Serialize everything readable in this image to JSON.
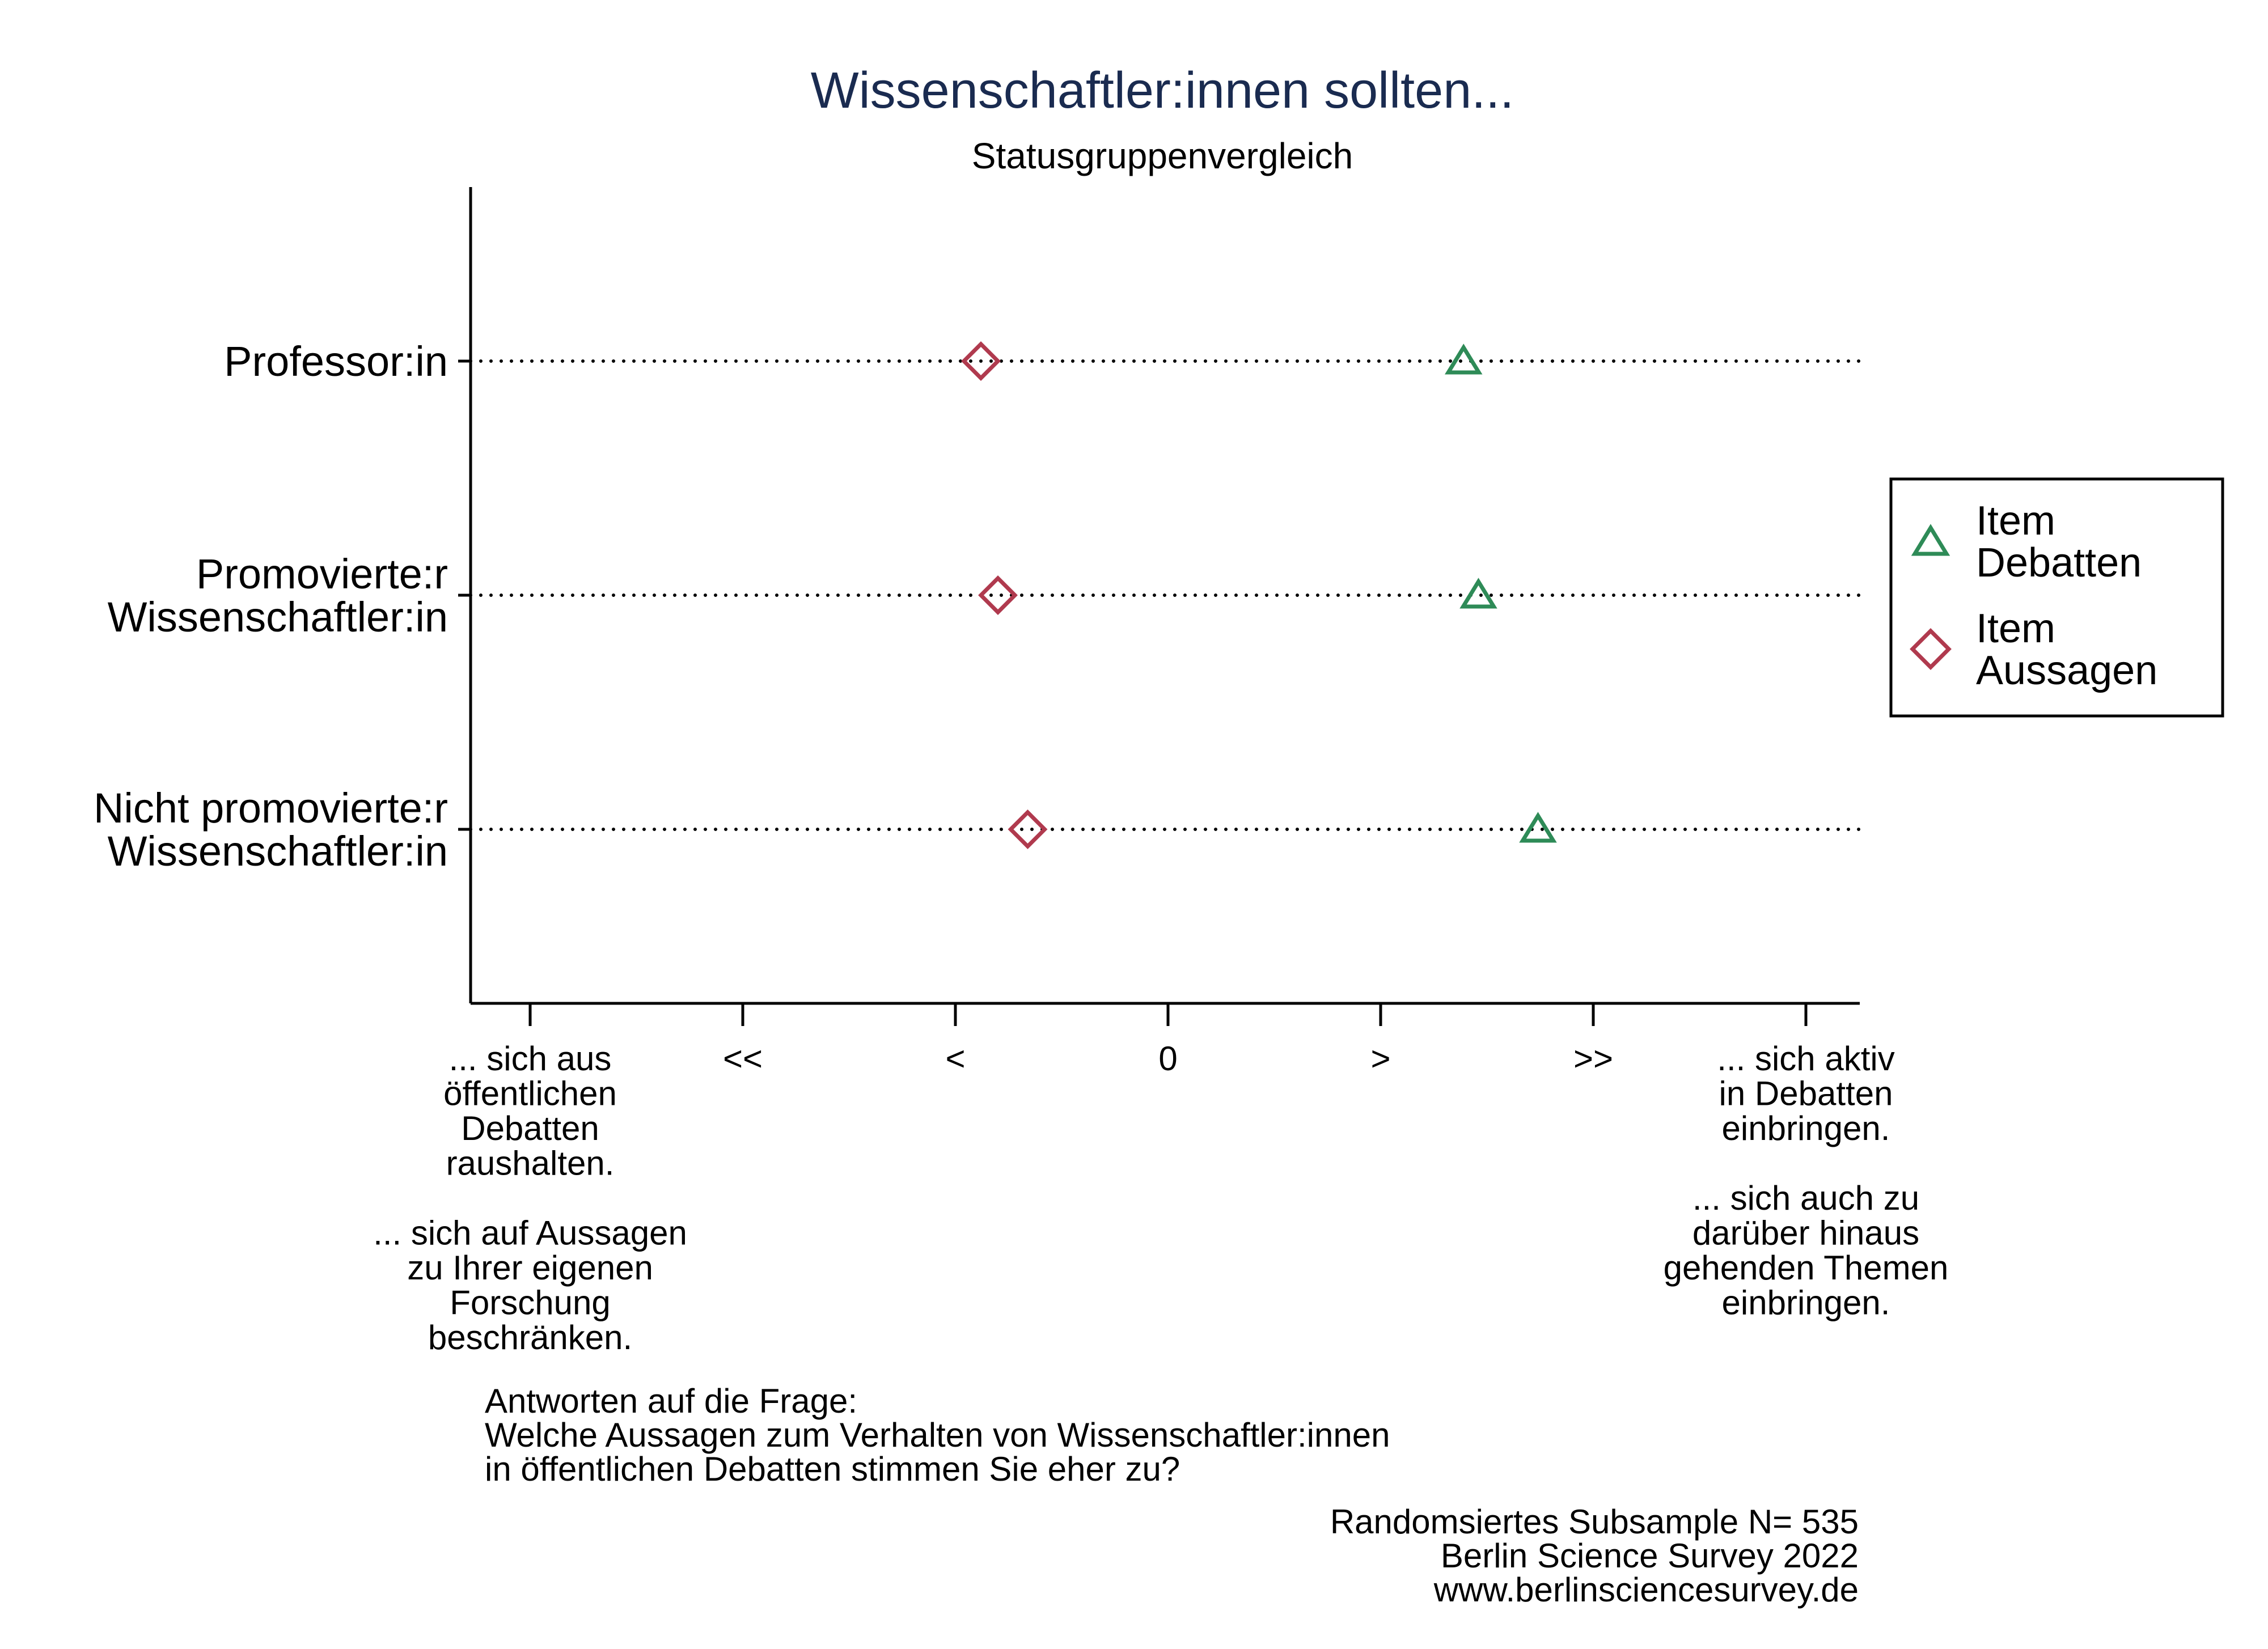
{
  "chart_data": {
    "type": "scatter",
    "title": "Wissenschaftler:innen sollten...",
    "subtitle": "Statusgruppenvergleich",
    "categories": [
      [
        "Professor:in"
      ],
      [
        "Promovierte:r",
        "Wissenschaftler:in"
      ],
      [
        "Nicht promovierte:r",
        "Wissenschaftler:in"
      ]
    ],
    "xlim": [
      -3,
      3
    ],
    "x_ticks": [
      {
        "value": -3,
        "lines": [
          "... sich aus",
          "öffentlichen",
          "Debatten",
          "raushalten.",
          "",
          "... sich auf Aussagen",
          "zu Ihrer eigenen",
          "Forschung",
          "beschränken."
        ]
      },
      {
        "value": -2,
        "lines": [
          "<<"
        ]
      },
      {
        "value": -1,
        "lines": [
          "<"
        ]
      },
      {
        "value": 0,
        "lines": [
          "0"
        ]
      },
      {
        "value": 1,
        "lines": [
          ">"
        ]
      },
      {
        "value": 2,
        "lines": [
          ">>"
        ]
      },
      {
        "value": 3,
        "lines": [
          "... sich aktiv",
          "in Debatten",
          "einbringen.",
          "",
          "... sich auch zu",
          "darüber hinaus",
          "gehenden Themen",
          "einbringen."
        ]
      }
    ],
    "series": [
      {
        "name": "Item Debatten",
        "legend_lines": [
          "Item",
          "Debatten"
        ],
        "marker": "triangle",
        "color": "#2e8b57",
        "values": [
          1.39,
          1.46,
          1.74
        ]
      },
      {
        "name": "Item Aussagen",
        "legend_lines": [
          "Item",
          "Aussagen"
        ],
        "marker": "diamond",
        "color": "#b03a4e",
        "values": [
          -0.88,
          -0.8,
          -0.66
        ]
      }
    ],
    "grid": false,
    "legend_position": "right"
  },
  "notes": {
    "question": [
      "Antworten auf die Frage:",
      "Welche Aussagen zum Verhalten von Wissenschaftler:innen",
      "in öffentlichen Debatten stimmen Sie eher zu?"
    ],
    "source": [
      "Randomsiertes Subsample N= 535",
      "Berlin Science Survey 2022",
      "www.berlinsciencesurvey.de"
    ]
  }
}
